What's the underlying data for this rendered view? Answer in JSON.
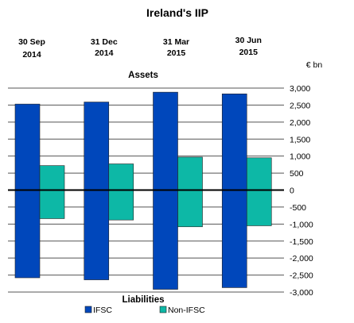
{
  "chart_data": {
    "type": "bar",
    "title": "Ireland's IIP",
    "unit_label": "€ bn",
    "categories": [
      "30 Sep\n2014",
      "31 Dec\n2014",
      "31 Mar\n2015",
      "30 Jun\n2015"
    ],
    "top_label": "Assets",
    "bottom_label": "Liabilities",
    "ylim": [
      -3000,
      3000
    ],
    "yticks": [
      3000,
      2500,
      2000,
      1500,
      1000,
      500,
      0,
      -500,
      -1000,
      -1500,
      -2000,
      -2500,
      -3000
    ],
    "ytick_labels": [
      "3,000",
      "2,500",
      "2,000",
      "1,500",
      "1,000",
      "500",
      "0",
      "-500",
      "-1,000",
      "-1,500",
      "-2,000",
      "-2,500",
      "-3,000"
    ],
    "grid": true,
    "legend_position": "bottom",
    "series": [
      {
        "name": "IFSC",
        "color": "#0047BB",
        "assets": [
          2530,
          2590,
          2880,
          2830
        ],
        "liabilities": [
          -2580,
          -2640,
          -2920,
          -2870
        ]
      },
      {
        "name": "Non-IFSC",
        "color": "#0DB8A6",
        "assets": [
          720,
          770,
          970,
          950
        ],
        "liabilities": [
          -840,
          -880,
          -1080,
          -1050
        ]
      }
    ]
  }
}
